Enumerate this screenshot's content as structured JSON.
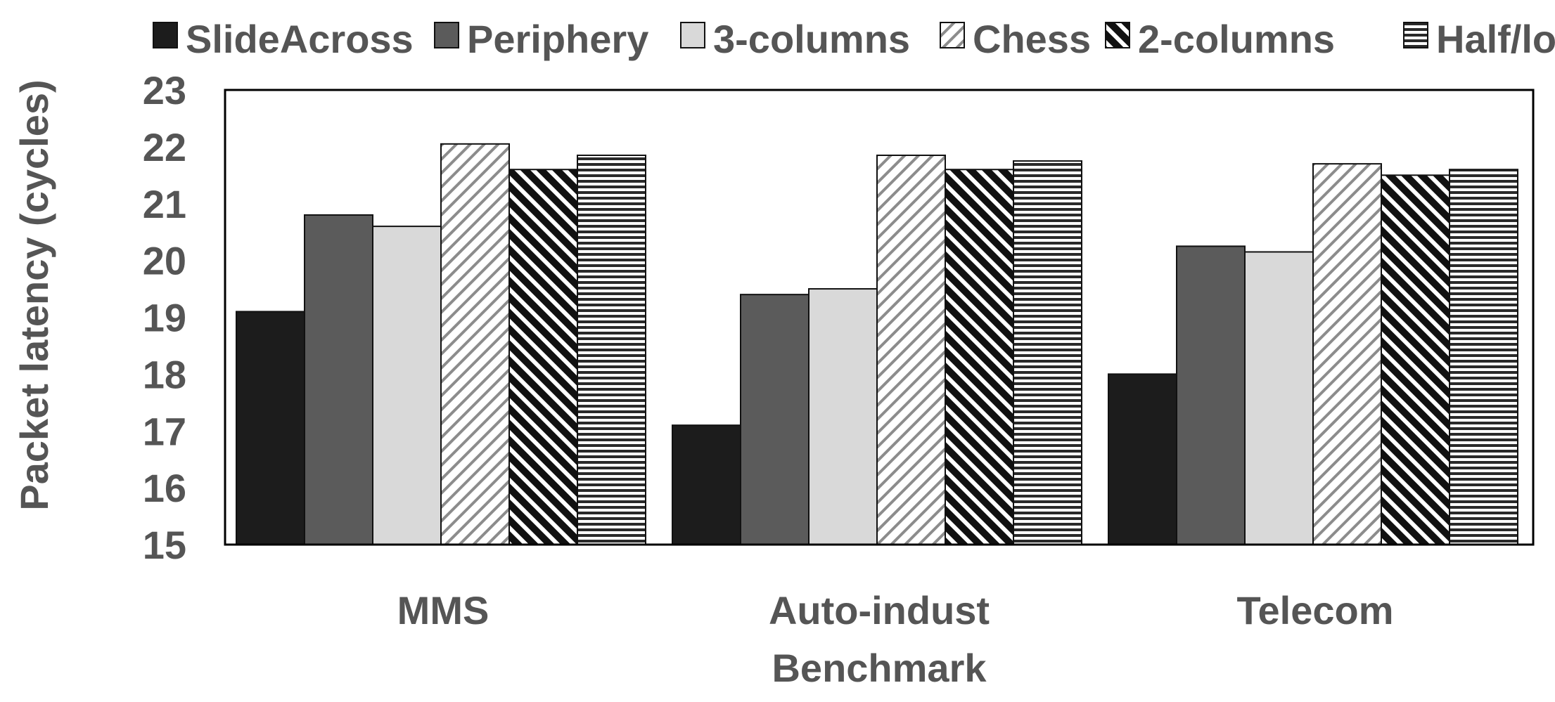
{
  "chart_data": {
    "type": "bar",
    "title": "",
    "xlabel": "Benchmark",
    "ylabel": "Packet latency (cycles)",
    "ylim": [
      15,
      23
    ],
    "yticks": [
      "15",
      "16",
      "17",
      "18",
      "19",
      "20",
      "21",
      "22",
      "23"
    ],
    "categories": [
      "MMS",
      "Auto-indust",
      "Telecom"
    ],
    "legend_position": "top",
    "grid": false,
    "series": [
      {
        "name": "SlideAcross",
        "values": [
          19.1,
          17.1,
          18.0
        ],
        "color": "#1c1c1c",
        "pattern": "solid"
      },
      {
        "name": "Periphery",
        "values": [
          20.8,
          19.4,
          20.25
        ],
        "color": "#5b5b5b",
        "pattern": "solid"
      },
      {
        "name": "3-columns",
        "values": [
          20.6,
          19.5,
          20.15
        ],
        "color": "#d9d9d9",
        "pattern": "solid"
      },
      {
        "name": "Chess",
        "values": [
          22.05,
          21.85,
          21.7
        ],
        "color": "#ffffff",
        "pattern": "diag-light"
      },
      {
        "name": "2-columns",
        "values": [
          21.6,
          21.6,
          21.5
        ],
        "color": "#1a1a1a",
        "pattern": "diag-dark"
      },
      {
        "name": "Half/lo",
        "values": [
          21.85,
          21.75,
          21.6
        ],
        "color": "#2a2a2a",
        "pattern": "horizontal"
      }
    ]
  }
}
